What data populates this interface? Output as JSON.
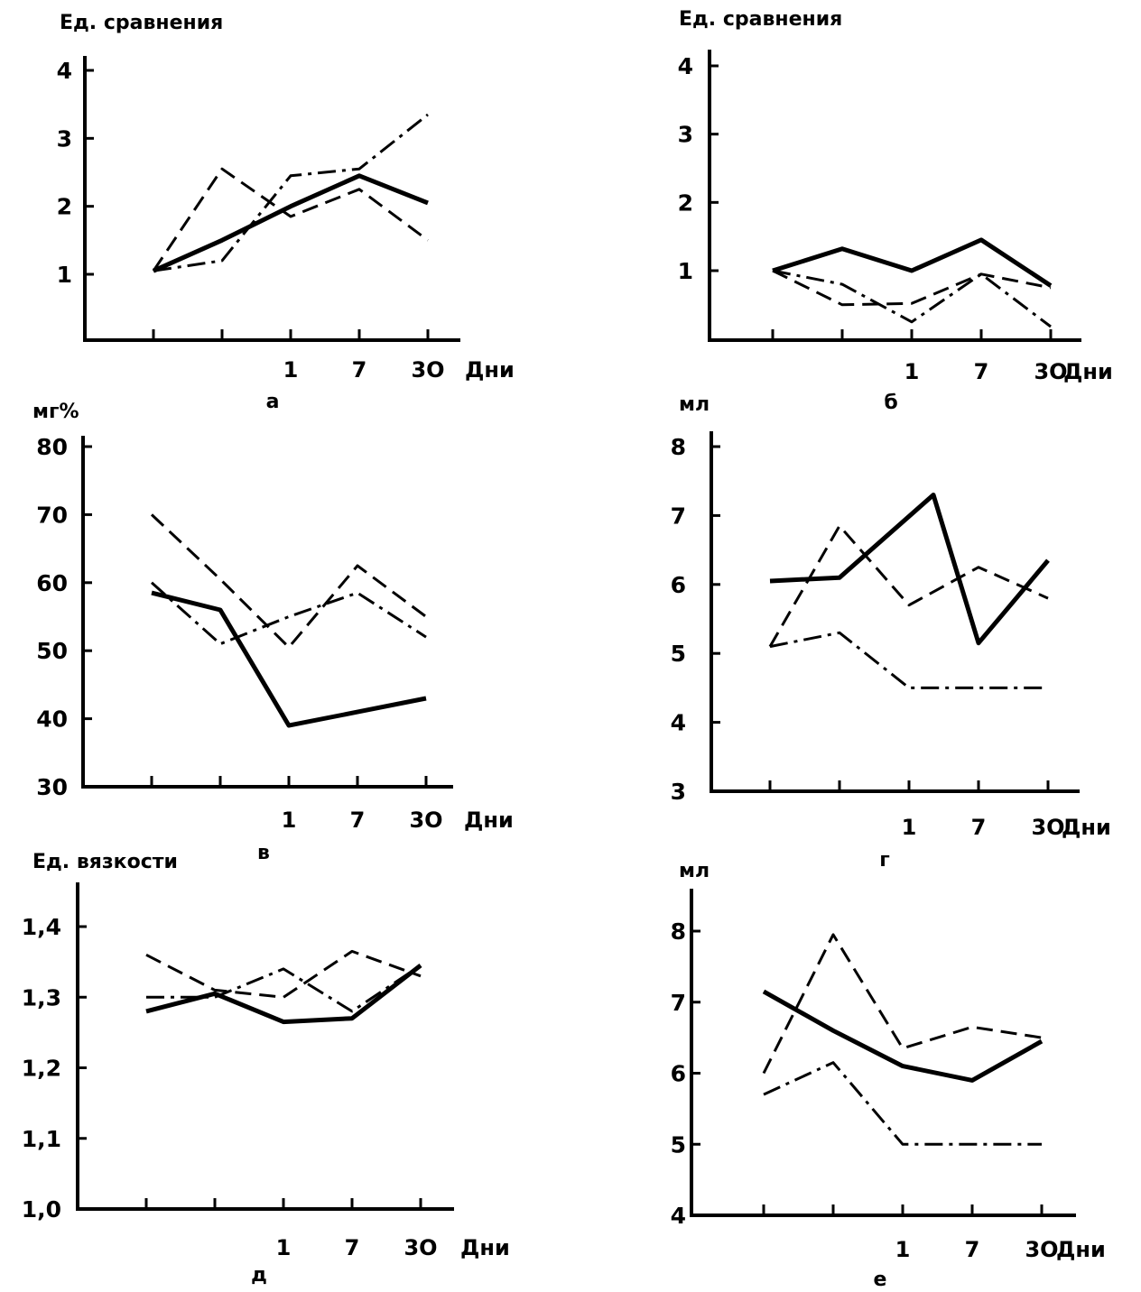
{
  "chart_data": [
    {
      "panel": "а",
      "type": "line",
      "ylabel": "Ед. сравнения",
      "yticks": [
        1,
        2,
        3,
        4
      ],
      "ylim": [
        0,
        4.3
      ],
      "x": [
        1,
        2,
        3,
        4,
        5
      ],
      "xtick_labels": [
        "",
        "",
        "1",
        "7",
        "3О"
      ],
      "xunit": "Дни",
      "series": [
        {
          "style": "solid",
          "values": [
            1.05,
            1.5,
            2.0,
            2.45,
            2.05
          ]
        },
        {
          "style": "dashed",
          "values": [
            1.05,
            2.55,
            1.85,
            2.25,
            1.5
          ]
        },
        {
          "style": "dashdot",
          "values": [
            1.05,
            1.2,
            2.45,
            2.55,
            3.35
          ]
        }
      ]
    },
    {
      "panel": "б",
      "type": "line",
      "ylabel": "Ед. сравнения",
      "yticks": [
        1,
        2,
        3,
        4
      ],
      "ylim": [
        0,
        4.3
      ],
      "x": [
        1,
        2,
        3,
        4,
        5
      ],
      "xtick_labels": [
        "",
        "",
        "1",
        "7",
        "3О"
      ],
      "xunit": "Дни",
      "series": [
        {
          "style": "solid",
          "values": [
            1.0,
            1.32,
            1.0,
            1.45,
            0.78
          ]
        },
        {
          "style": "dashed",
          "values": [
            1.0,
            0.5,
            0.52,
            0.95,
            0.75
          ]
        },
        {
          "style": "dashdot",
          "values": [
            1.0,
            0.8,
            0.25,
            0.95,
            0.18
          ]
        }
      ]
    },
    {
      "panel": "в",
      "type": "line",
      "ylabel": "мг%",
      "yticks": [
        30,
        40,
        50,
        60,
        70,
        80
      ],
      "ylim": [
        30,
        80
      ],
      "x": [
        1,
        2,
        3,
        4,
        5
      ],
      "xtick_labels": [
        "",
        "",
        "1",
        "7",
        "3О"
      ],
      "xunit": "Дни",
      "series": [
        {
          "style": "solid",
          "values": [
            58.5,
            56,
            39,
            41,
            43
          ]
        },
        {
          "style": "dashed",
          "values": [
            70,
            60.5,
            50.5,
            62.5,
            55
          ]
        },
        {
          "style": "dashdot",
          "values": [
            60,
            51,
            55,
            58.5,
            52
          ]
        }
      ]
    },
    {
      "panel": "г",
      "type": "line",
      "ylabel": "мл",
      "yticks": [
        3,
        4,
        5,
        6,
        7,
        8
      ],
      "ylim": [
        2.9,
        8.3
      ],
      "x": [
        1,
        2,
        3,
        4,
        5
      ],
      "xtick_labels": [
        "",
        "",
        "1",
        "7",
        "3О"
      ],
      "xunit": "Дни",
      "series": [
        {
          "style": "solid",
          "x": [
            1,
            2,
            3.35,
            4,
            5
          ],
          "values": [
            6.05,
            6.1,
            7.3,
            5.15,
            6.35
          ]
        },
        {
          "style": "dashed",
          "values": [
            5.1,
            6.85,
            5.7,
            6.25,
            5.8
          ]
        },
        {
          "style": "dashdot",
          "values": [
            5.1,
            5.3,
            4.5,
            4.5,
            4.5
          ]
        }
      ]
    },
    {
      "panel": "д",
      "type": "line",
      "ylabel": "Ед. вязкости",
      "yticks": [
        "1,0",
        "1,1",
        "1,2",
        "1,3",
        "1,4"
      ],
      "yvalues": [
        1.0,
        1.1,
        1.2,
        1.3,
        1.4
      ],
      "ylim": [
        1.0,
        1.45
      ],
      "x": [
        1,
        2,
        3,
        4,
        5
      ],
      "xtick_labels": [
        "",
        "",
        "1",
        "7",
        "3О"
      ],
      "xunit": "Дни",
      "series": [
        {
          "style": "solid",
          "values": [
            1.28,
            1.305,
            1.265,
            1.27,
            1.345
          ]
        },
        {
          "style": "dashed",
          "values": [
            1.36,
            1.31,
            1.3,
            1.365,
            1.33
          ]
        },
        {
          "style": "dashdot",
          "values": [
            1.3,
            1.3,
            1.34,
            1.28,
            1.345
          ]
        }
      ]
    },
    {
      "panel": "е",
      "type": "line",
      "ylabel": "мл",
      "yticks": [
        4,
        5,
        6,
        7,
        8
      ],
      "ylim": [
        4,
        8.6
      ],
      "x": [
        1,
        2,
        3,
        4,
        5
      ],
      "xtick_labels": [
        "",
        "",
        "1",
        "7",
        "3О"
      ],
      "xunit": "Дни",
      "series": [
        {
          "style": "solid",
          "values": [
            7.15,
            6.6,
            6.1,
            5.9,
            6.45
          ]
        },
        {
          "style": "dashed",
          "values": [
            6.0,
            7.95,
            6.35,
            6.65,
            6.5
          ]
        },
        {
          "style": "dashdot",
          "values": [
            5.7,
            6.15,
            5.0,
            5.0,
            5.0
          ]
        }
      ]
    }
  ]
}
